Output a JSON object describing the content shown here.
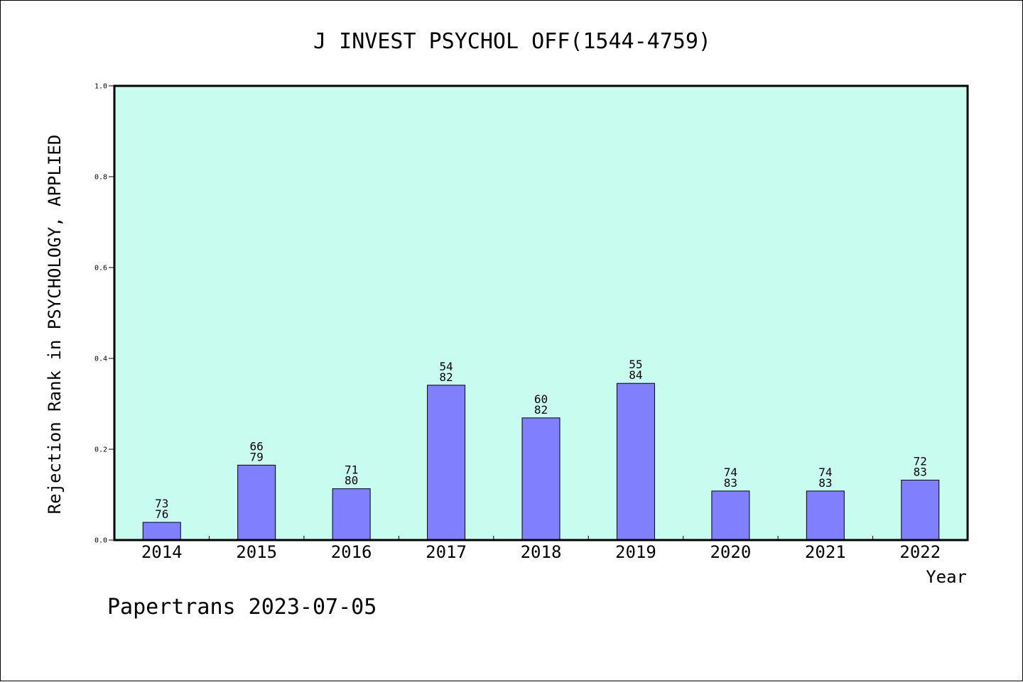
{
  "chart_data": {
    "type": "bar",
    "title": "J INVEST PSYCHOL OFF(1544-4759)",
    "xlabel": "Year",
    "ylabel": "Rejection Rank in PSYCHOLOGY, APPLIED",
    "ylim": [
      0,
      1.0
    ],
    "yticks": [
      "0.0",
      "0.2",
      "0.4",
      "0.6",
      "0.8",
      "1.0"
    ],
    "categories": [
      "2014",
      "2015",
      "2016",
      "2017",
      "2018",
      "2019",
      "2020",
      "2021",
      "2022"
    ],
    "values": [
      0.039,
      0.165,
      0.113,
      0.341,
      0.269,
      0.345,
      0.108,
      0.108,
      0.132
    ],
    "labels_top": [
      "73",
      "66",
      "71",
      "54",
      "60",
      "55",
      "74",
      "74",
      "72"
    ],
    "labels_bottom": [
      "76",
      "79",
      "80",
      "82",
      "82",
      "84",
      "83",
      "83",
      "83"
    ],
    "grid": false,
    "legend": "none",
    "colors": {
      "plot_background": "#c8fcee",
      "bar_fill": "#8080ff",
      "bar_stroke": "#000000"
    }
  },
  "footer": {
    "credit": "Papertrans 2023-07-05"
  }
}
